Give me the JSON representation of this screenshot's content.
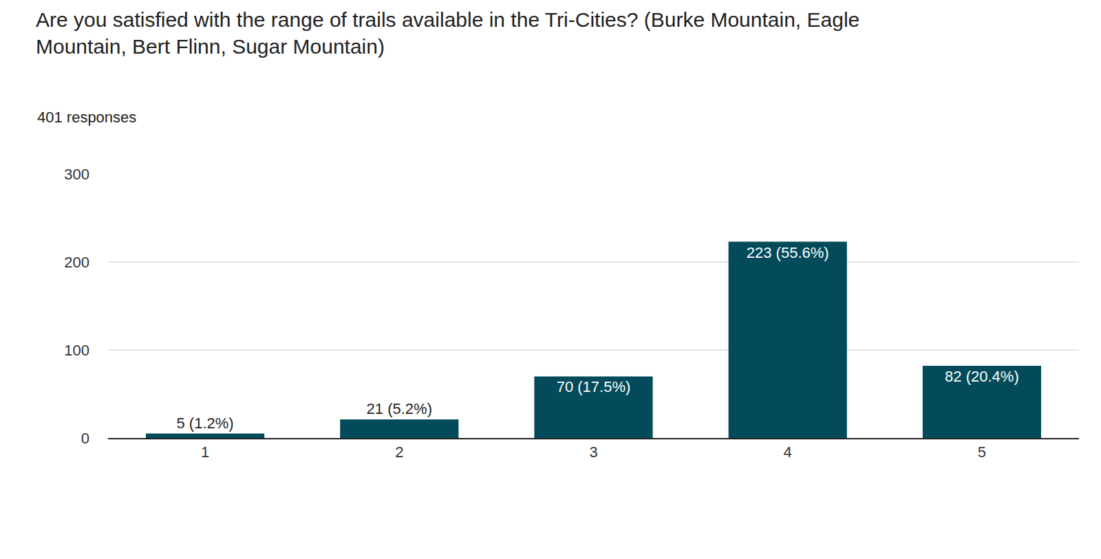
{
  "chart_data": {
    "type": "bar",
    "title": "Are you satisfied with the range of trails available in the Tri-Cities? (Burke Mountain, Eagle\nMountain, Bert Flinn, Sugar Mountain)",
    "subtitle": "401 responses",
    "categories": [
      "1",
      "2",
      "3",
      "4",
      "5"
    ],
    "values": [
      5,
      21,
      70,
      223,
      82
    ],
    "value_labels": [
      "5 (1.2%)",
      "21 (5.2%)",
      "70 (17.5%)",
      "223 (55.6%)",
      "82 (20.4%)"
    ],
    "color": "#034b5a",
    "ylim": [
      0,
      300
    ],
    "yticks": [
      0,
      100,
      200,
      300
    ],
    "grid": true,
    "data_labels": true
  }
}
